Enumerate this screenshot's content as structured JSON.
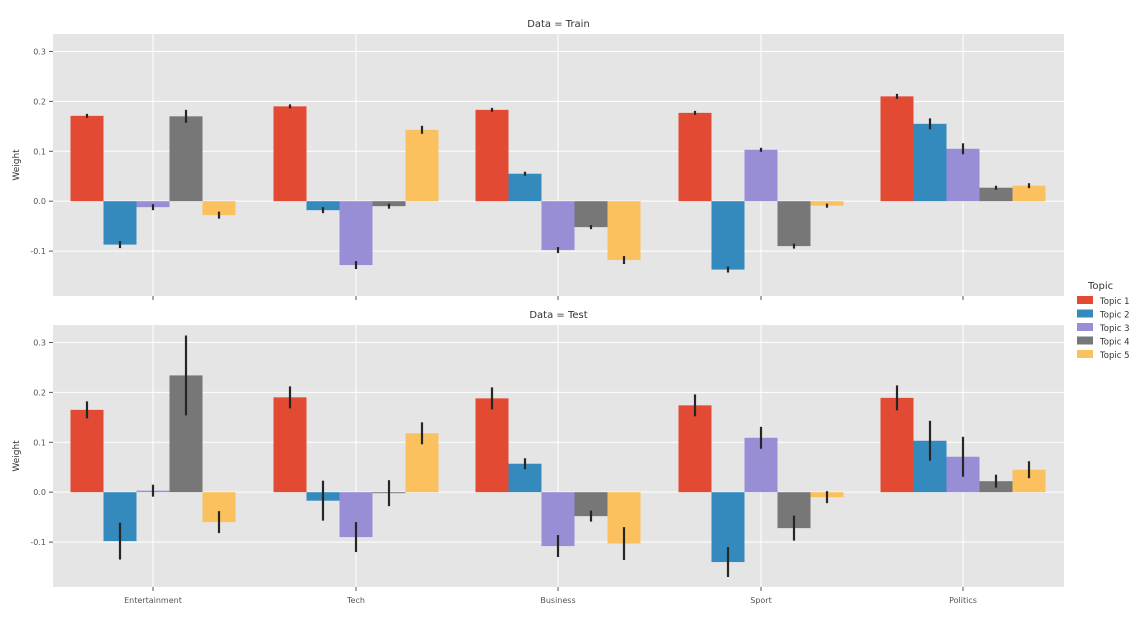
{
  "chart_data": [
    {
      "type": "bar",
      "title": "Data = Train",
      "ylabel": "Weight",
      "xlabel": "",
      "categories": [
        "Entertainment",
        "Tech",
        "Business",
        "Sport",
        "Politics"
      ],
      "ylim": [
        -0.19,
        0.335
      ],
      "yticks": [
        -0.1,
        0.0,
        0.1,
        0.2,
        0.3
      ],
      "ytick_labels": [
        "-0.1",
        "0.0",
        "0.1",
        "0.2",
        "0.3"
      ],
      "show_xtick_labels": false,
      "grid": true,
      "series": [
        {
          "name": "Topic 1",
          "values": [
            0.171,
            0.19,
            0.183,
            0.177,
            0.21
          ],
          "errors": [
            0.004,
            0.004,
            0.004,
            0.004,
            0.005
          ]
        },
        {
          "name": "Topic 2",
          "values": [
            -0.087,
            -0.018,
            0.055,
            -0.137,
            0.155
          ],
          "errors": [
            0.007,
            0.006,
            0.004,
            0.006,
            0.011
          ]
        },
        {
          "name": "Topic 3",
          "values": [
            -0.012,
            -0.128,
            -0.098,
            0.103,
            0.105
          ],
          "errors": [
            0.006,
            0.008,
            0.006,
            0.004,
            0.011
          ]
        },
        {
          "name": "Topic 4",
          "values": [
            0.17,
            -0.01,
            -0.052,
            -0.09,
            0.027
          ],
          "errors": [
            0.013,
            0.005,
            0.004,
            0.005,
            0.004
          ]
        },
        {
          "name": "Topic 5",
          "values": [
            -0.028,
            0.143,
            -0.118,
            -0.009,
            0.031
          ],
          "errors": [
            0.007,
            0.008,
            0.008,
            0.004,
            0.005
          ]
        }
      ]
    },
    {
      "type": "bar",
      "title": "Data = Test",
      "ylabel": "Weight",
      "xlabel": "",
      "categories": [
        "Entertainment",
        "Tech",
        "Business",
        "Sport",
        "Politics"
      ],
      "ylim": [
        -0.19,
        0.335
      ],
      "yticks": [
        -0.1,
        0.0,
        0.1,
        0.2,
        0.3
      ],
      "ytick_labels": [
        "-0.1",
        "0.0",
        "0.1",
        "0.2",
        "0.3"
      ],
      "show_xtick_labels": true,
      "grid": true,
      "series": [
        {
          "name": "Topic 1",
          "values": [
            0.165,
            0.19,
            0.188,
            0.174,
            0.189
          ],
          "errors": [
            0.017,
            0.022,
            0.022,
            0.022,
            0.025
          ]
        },
        {
          "name": "Topic 2",
          "values": [
            -0.098,
            -0.017,
            0.057,
            -0.14,
            0.103
          ],
          "errors": [
            0.037,
            0.04,
            0.011,
            0.03,
            0.04
          ]
        },
        {
          "name": "Topic 3",
          "values": [
            0.003,
            -0.09,
            -0.108,
            0.109,
            0.071
          ],
          "errors": [
            0.012,
            0.03,
            0.022,
            0.022,
            0.04
          ]
        },
        {
          "name": "Topic 4",
          "values": [
            0.234,
            -0.002,
            -0.048,
            -0.072,
            0.022
          ],
          "errors": [
            0.08,
            0.026,
            0.011,
            0.025,
            0.013
          ]
        },
        {
          "name": "Topic 5",
          "values": [
            -0.06,
            0.118,
            -0.103,
            -0.01,
            0.045
          ],
          "errors": [
            0.022,
            0.022,
            0.033,
            0.012,
            0.017
          ]
        }
      ]
    }
  ],
  "legend": {
    "title": "Topic",
    "placement": "right",
    "entries": [
      "Topic 1",
      "Topic 2",
      "Topic 3",
      "Topic 4",
      "Topic 5"
    ]
  },
  "colors": {
    "Topic 1": "#E24A33",
    "Topic 2": "#348ABD",
    "Topic 3": "#988ED5",
    "Topic 4": "#777777",
    "Topic 5": "#FBC15E",
    "panel_background": "#E5E5E5",
    "grid": "#FFFFFF",
    "error_bar": "#262626",
    "text": "#333333"
  }
}
